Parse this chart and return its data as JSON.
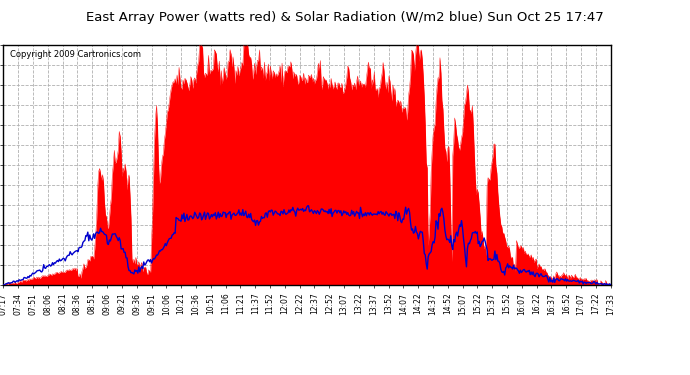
{
  "title": "East Array Power (watts red) & Solar Radiation (W/m2 blue) Sun Oct 25 17:47",
  "copyright": "Copyright 2009 Cartronics.com",
  "yticks": [
    0.0,
    137.3,
    274.6,
    411.9,
    549.3,
    686.6,
    823.9,
    961.2,
    1098.5,
    1235.8,
    1373.1,
    1510.4,
    1647.8
  ],
  "ymax": 1647.8,
  "ymin": 0.0,
  "bg_color": "#ffffff",
  "plot_bg_color": "#ffffff",
  "grid_color": "#b0b0b0",
  "red_color": "#ff0000",
  "blue_color": "#0000cc",
  "fill_color": "#ff0000",
  "xtick_labels": [
    "07:17",
    "07:34",
    "07:51",
    "08:06",
    "08:21",
    "08:36",
    "08:51",
    "09:06",
    "09:21",
    "09:36",
    "09:51",
    "10:06",
    "10:21",
    "10:36",
    "10:51",
    "11:06",
    "11:21",
    "11:37",
    "11:52",
    "12:07",
    "12:22",
    "12:37",
    "12:52",
    "13:07",
    "13:22",
    "13:37",
    "13:52",
    "14:07",
    "14:22",
    "14:37",
    "14:52",
    "15:07",
    "15:22",
    "15:37",
    "15:52",
    "16:07",
    "16:22",
    "16:37",
    "16:52",
    "17:07",
    "17:22",
    "17:33"
  ]
}
